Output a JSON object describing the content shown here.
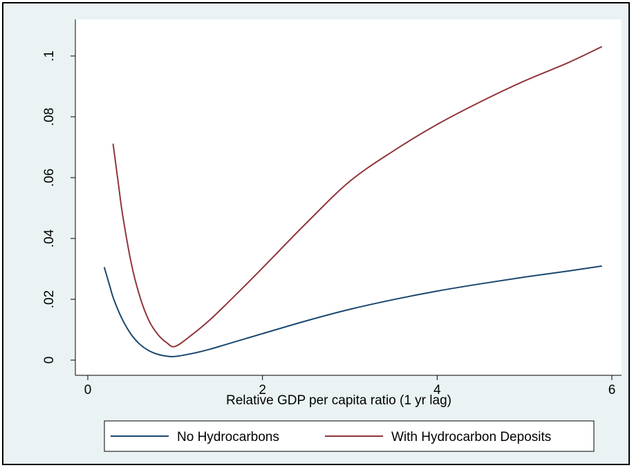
{
  "chart_data": {
    "type": "line",
    "title": "",
    "xlabel": "Relative GDP per capita ratio (1 yr lag)",
    "ylabel": "",
    "xlim": [
      0,
      6
    ],
    "ylim": [
      0,
      0.1
    ],
    "x_ticks": [
      0,
      2,
      4,
      6
    ],
    "x_tick_labels": [
      "0",
      "2",
      "4",
      "6"
    ],
    "y_ticks": [
      0,
      0.02,
      0.04,
      0.06,
      0.08,
      0.1
    ],
    "y_tick_labels": [
      "0",
      ".02",
      ".04",
      ".06",
      ".08",
      ".1"
    ],
    "grid": false,
    "legend_position": "bottom",
    "series": [
      {
        "name": "No Hydrocarbons",
        "color": "#1a476f",
        "x": [
          0.19,
          0.25,
          0.3,
          0.4,
          0.5,
          0.6,
          0.7,
          0.8,
          0.9,
          1.0,
          1.2,
          1.4,
          1.6,
          1.8,
          2.0,
          2.5,
          3.0,
          3.5,
          4.0,
          4.5,
          5.0,
          5.5,
          5.88
        ],
        "values": [
          0.0304,
          0.0245,
          0.0198,
          0.0131,
          0.0083,
          0.0051,
          0.0031,
          0.0019,
          0.0013,
          0.0012,
          0.0022,
          0.0036,
          0.0053,
          0.007,
          0.0087,
          0.0129,
          0.0167,
          0.0199,
          0.0227,
          0.0251,
          0.0273,
          0.0293,
          0.0309
        ]
      },
      {
        "name": "With Hydrocarbon Deposits",
        "color": "#90353b",
        "x": [
          0.29,
          0.35,
          0.4,
          0.5,
          0.6,
          0.7,
          0.8,
          0.9,
          1.0,
          1.2,
          1.4,
          1.6,
          1.8,
          2.0,
          2.5,
          3.0,
          3.5,
          4.0,
          4.5,
          5.0,
          5.5,
          5.88
        ],
        "values": [
          0.071,
          0.058,
          0.0475,
          0.0315,
          0.0205,
          0.013,
          0.0085,
          0.0058,
          0.0045,
          0.0085,
          0.0133,
          0.0188,
          0.0245,
          0.0303,
          0.045,
          0.0588,
          0.0688,
          0.0775,
          0.085,
          0.0918,
          0.0978,
          0.103
        ]
      }
    ]
  },
  "colors": {
    "outer_background": "#eaf2f3",
    "plot_background": "#ffffff",
    "axis": "#000000"
  }
}
